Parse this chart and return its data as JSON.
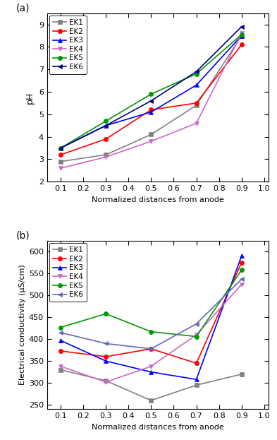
{
  "x": [
    0.1,
    0.3,
    0.5,
    0.7,
    0.9
  ],
  "pH": {
    "EK1": [
      2.9,
      3.2,
      4.1,
      5.4,
      8.5
    ],
    "EK2": [
      3.2,
      3.9,
      5.2,
      5.5,
      8.1
    ],
    "EK3": [
      3.5,
      4.5,
      5.1,
      6.3,
      8.5
    ],
    "EK4": [
      2.6,
      3.1,
      3.8,
      4.6,
      8.6
    ],
    "EK5": [
      3.5,
      4.7,
      5.9,
      6.8,
      8.55
    ],
    "EK6": [
      3.5,
      4.5,
      5.6,
      6.9,
      8.9
    ]
  },
  "EC": {
    "EK1": [
      330,
      305,
      260,
      295,
      320
    ],
    "EK2": [
      373,
      360,
      378,
      345,
      575
    ],
    "EK3": [
      397,
      350,
      325,
      308,
      590
    ],
    "EK4": [
      338,
      302,
      338,
      410,
      525
    ],
    "EK5": [
      427,
      458,
      417,
      406,
      558
    ],
    "EK6": [
      415,
      390,
      378,
      435,
      537
    ]
  },
  "colors": {
    "EK1": "#808080",
    "EK2": "#ff0000",
    "EK3": "#0000ff",
    "EK4": "#cc66cc",
    "EK5": "#009900",
    "EK6": "#000080"
  },
  "colors_b": {
    "EK1": "#808080",
    "EK2": "#ff0000",
    "EK3": "#0000ff",
    "EK4": "#cc66cc",
    "EK5": "#009900",
    "EK6": "#6666bb"
  },
  "markers": {
    "EK1": "s",
    "EK2": "o",
    "EK3": "^",
    "EK4": "v",
    "EK5": "o",
    "EK6": "<"
  },
  "pH_ylim": [
    2.0,
    9.5
  ],
  "pH_yticks": [
    2,
    3,
    4,
    5,
    6,
    7,
    8,
    9
  ],
  "EC_ylim": [
    240,
    625
  ],
  "EC_yticks": [
    250,
    300,
    350,
    400,
    450,
    500,
    550,
    600
  ],
  "xlim": [
    0.04,
    1.02
  ],
  "xticks": [
    0.1,
    0.2,
    0.3,
    0.4,
    0.5,
    0.6,
    0.7,
    0.8,
    0.9,
    1.0
  ],
  "xlabel": "Normalized distances from anode",
  "pH_ylabel": "pH",
  "EC_ylabel": "Electrical conductivity (μS/cm)",
  "label_a": "(a)",
  "label_b": "(b)"
}
